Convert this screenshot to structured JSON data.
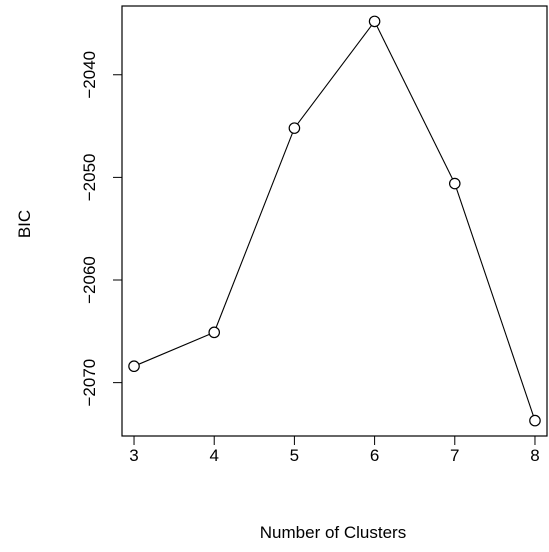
{
  "chart_data": {
    "type": "line",
    "title": "",
    "xlabel": "Number of Clusters",
    "ylabel": "BIC",
    "x": [
      3,
      4,
      5,
      6,
      7,
      8
    ],
    "series": [
      {
        "values": [
          -2068.4,
          -2065.1,
          -2045.2,
          -2034.8,
          -2050.6,
          -2073.7
        ]
      }
    ],
    "xlim": [
      2.85,
      8.15
    ],
    "ylim": [
      -2075.2,
      -2033.3
    ],
    "x_ticks": [
      3,
      4,
      5,
      6,
      7,
      8
    ],
    "y_ticks": [
      -2070,
      -2060,
      -2050,
      -2040
    ],
    "x_tick_labels": [
      "3",
      "4",
      "5",
      "6",
      "7",
      "8"
    ],
    "y_tick_labels": [
      "−2070",
      "−2060",
      "−2050",
      "−2040"
    ],
    "markers": "open-circle",
    "grid": false,
    "legend": "none",
    "colors": {
      "line": "#000000",
      "marker_fill": "#ffffff",
      "background": "#ffffff"
    }
  }
}
